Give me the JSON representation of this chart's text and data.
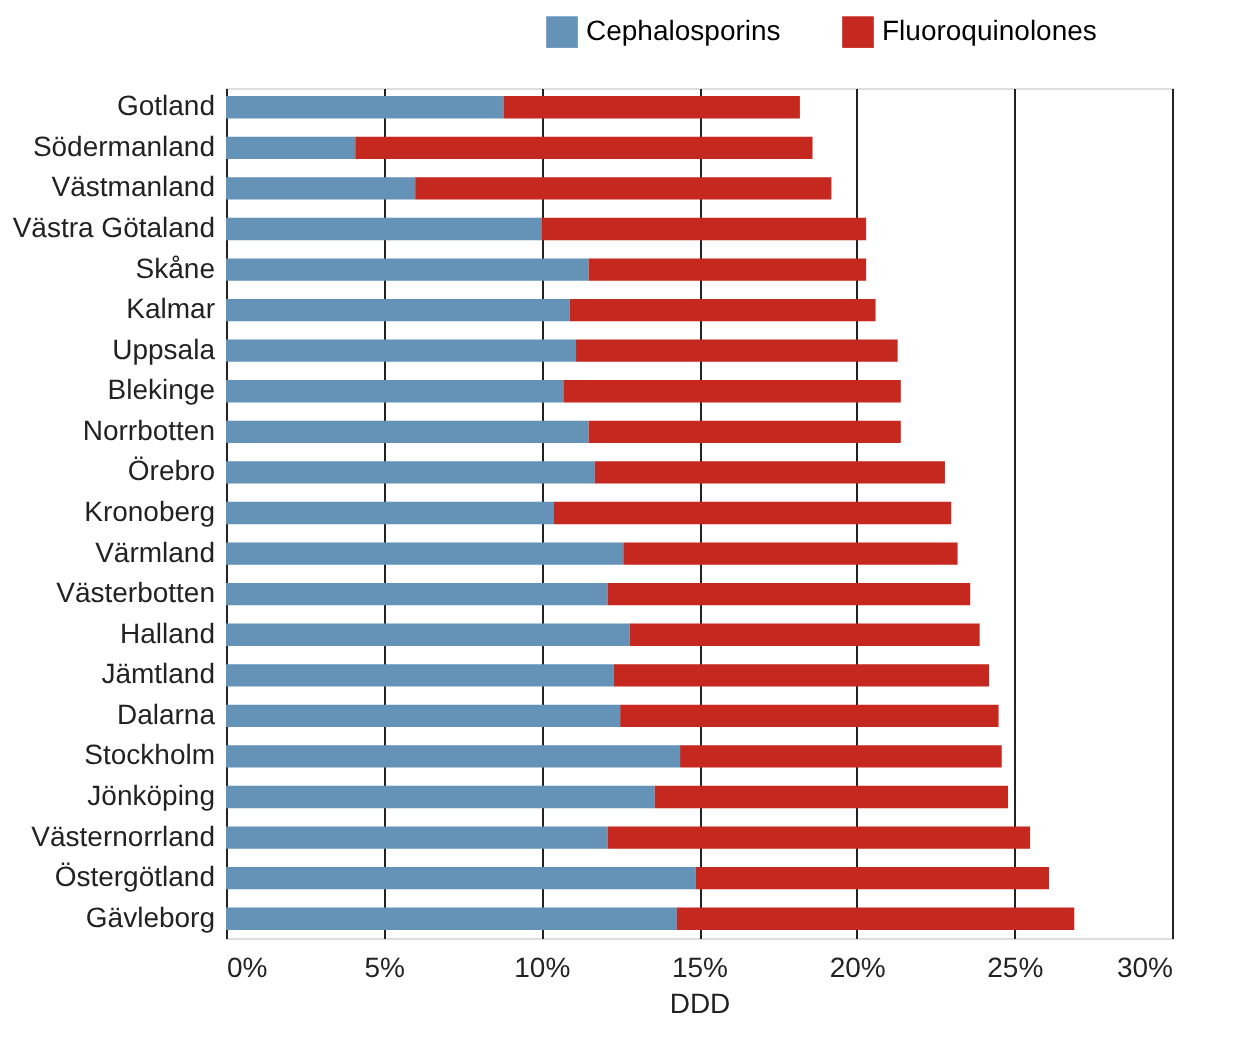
{
  "chart_data": {
    "type": "bar",
    "orientation": "horizontal",
    "stacked": true,
    "xlabel": "DDD",
    "categories": [
      "Gotland",
      "Södermanland",
      "Västmanland",
      "Västra Götaland",
      "Skåne",
      "Kalmar",
      "Uppsala",
      "Blekinge",
      "Norrbotten",
      "Örebro",
      "Kronoberg",
      "Värmland",
      "Västerbotten",
      "Halland",
      "Jämtland",
      "Dalarna",
      "Stockholm",
      "Jönköping",
      "Västernorrland",
      "Östergötland",
      "Gävleborg"
    ],
    "series": [
      {
        "name": "Cephalosporins",
        "color": "#6593b8",
        "values": [
          8.8,
          4.1,
          6.0,
          10.0,
          11.5,
          10.9,
          11.1,
          10.7,
          11.5,
          11.7,
          10.4,
          12.6,
          12.1,
          12.8,
          12.3,
          12.5,
          14.4,
          13.6,
          12.1,
          14.9,
          14.3
        ]
      },
      {
        "name": "Fluoroquinolones",
        "color": "#c5281f",
        "values": [
          9.4,
          14.5,
          13.2,
          10.3,
          8.8,
          9.7,
          10.2,
          10.7,
          9.9,
          11.1,
          12.6,
          10.6,
          11.5,
          11.1,
          11.9,
          12.0,
          10.2,
          11.2,
          13.4,
          11.2,
          12.6
        ]
      }
    ],
    "xlim": [
      0,
      30
    ],
    "xticks": [
      {
        "value": 0,
        "label": "0%"
      },
      {
        "value": 5,
        "label": "5%"
      },
      {
        "value": 10,
        "label": "10%"
      },
      {
        "value": 15,
        "label": "15%"
      },
      {
        "value": 20,
        "label": "20%"
      },
      {
        "value": 25,
        "label": "25%"
      },
      {
        "value": 30,
        "label": "30%"
      }
    ],
    "grid": "x",
    "legend": "top right"
  }
}
